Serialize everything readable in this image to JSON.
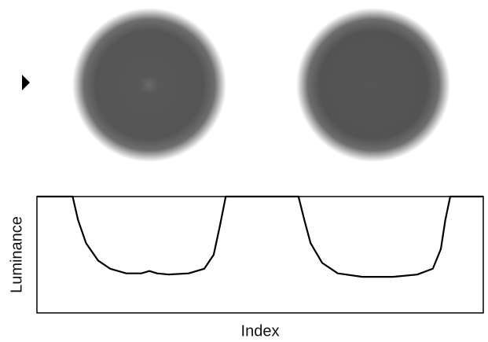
{
  "chart_data": {
    "type": "line",
    "x_label": "Index",
    "y_label": "Luminance",
    "xlim": [
      0,
      100
    ],
    "ylim": [
      0,
      100
    ],
    "series": [
      {
        "color": "#000000",
        "x": [
          0,
          8,
          9.2,
          11,
          13.7,
          16.4,
          20,
          23.4,
          25.2,
          26.9,
          29.6,
          34,
          37.5,
          39.6,
          41,
          42.3,
          58.6,
          59.9,
          61.3,
          63.9,
          67.4,
          72.9,
          79.8,
          85.2,
          88.7,
          90.5,
          91.5,
          92.6,
          100
        ],
        "values": [
          100,
          100,
          80,
          60,
          45,
          38,
          34,
          34,
          36,
          34,
          33,
          34,
          38,
          50,
          75,
          100,
          100,
          80,
          60,
          43,
          34,
          31,
          31,
          33,
          38,
          55,
          80,
          100,
          100
        ]
      }
    ]
  }
}
